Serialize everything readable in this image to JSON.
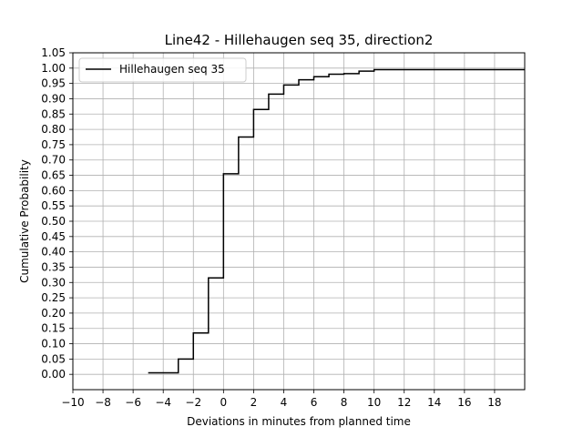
{
  "chart_data": {
    "type": "step",
    "title": "Line42 - Hillehaugen seq 35, direction2",
    "xlabel": "Deviations in minutes from planned time",
    "ylabel": "Cumulative Probability",
    "xlim": [
      -10,
      20
    ],
    "ylim": [
      -0.05,
      1.05
    ],
    "x_ticks": [
      "−10",
      "−8",
      "−6",
      "−4",
      "−2",
      "0",
      "2",
      "4",
      "6",
      "8",
      "10",
      "12",
      "14",
      "16",
      "18"
    ],
    "x_tick_values": [
      -10,
      -8,
      -6,
      -4,
      -2,
      0,
      2,
      4,
      6,
      8,
      10,
      12,
      14,
      16,
      18
    ],
    "y_ticks": [
      "0.00",
      "0.05",
      "0.10",
      "0.15",
      "0.20",
      "0.25",
      "0.30",
      "0.35",
      "0.40",
      "0.45",
      "0.50",
      "0.55",
      "0.60",
      "0.65",
      "0.70",
      "0.75",
      "0.80",
      "0.85",
      "0.90",
      "0.95",
      "1.00",
      "1.05"
    ],
    "y_tick_values": [
      0,
      0.05,
      0.1,
      0.15,
      0.2,
      0.25,
      0.3,
      0.35,
      0.4,
      0.45,
      0.5,
      0.55,
      0.6,
      0.65,
      0.7,
      0.75,
      0.8,
      0.85,
      0.9,
      0.95,
      1.0,
      1.05
    ],
    "grid": true,
    "legend_position": "top-left",
    "series": [
      {
        "name": "Hillehaugen seq 35",
        "color": "#000000",
        "x": [
          -5,
          -3,
          -2,
          -1,
          0,
          1,
          2,
          3,
          4,
          5,
          6,
          7,
          8,
          9,
          10,
          20
        ],
        "y": [
          0.005,
          0.05,
          0.135,
          0.315,
          0.655,
          0.775,
          0.865,
          0.915,
          0.945,
          0.962,
          0.972,
          0.98,
          0.982,
          0.99,
          0.995,
          0.995
        ]
      }
    ]
  }
}
